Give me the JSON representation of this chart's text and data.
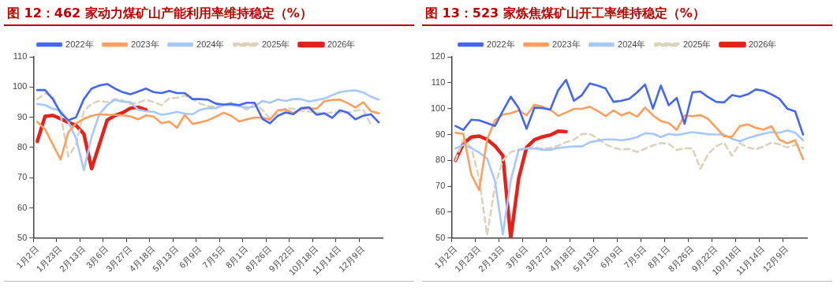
{
  "chart_data": [
    {
      "type": "line",
      "title": "图 12：462 家动力煤矿山产能利用率维持稳定（%）",
      "categories": [
        "1月2日",
        null,
        null,
        "1月23日",
        null,
        null,
        "2月13日",
        null,
        null,
        "3月6日",
        null,
        null,
        "3月27日",
        null,
        null,
        "4月18日",
        null,
        null,
        "5月13日",
        null,
        null,
        "6月9日",
        null,
        null,
        "7月5日",
        null,
        null,
        "8月1日",
        null,
        null,
        "8月26日",
        null,
        null,
        "9月22日",
        null,
        null,
        "10月18日",
        null,
        null,
        "11月14日",
        null,
        null,
        "12月9日",
        null,
        null
      ],
      "series": [
        {
          "name": "2022年",
          "color": "#4466f0",
          "values": [
            99,
            99,
            96,
            91.5,
            89,
            90,
            96,
            99.5,
            100.5,
            101,
            99.5,
            98.3,
            97.6,
            98.5,
            99.5,
            98.3,
            98,
            98.7,
            98,
            98,
            96,
            96,
            95.8,
            94.5,
            94.2,
            94.4,
            94,
            94.8,
            94.8,
            89.5,
            88,
            90.5,
            91.6,
            91,
            93,
            93.3,
            90.8,
            91.3,
            89.8,
            92.3,
            91.5,
            89.3,
            90.5,
            91,
            88.3
          ]
        },
        {
          "name": "2023年",
          "color": "#ff9e5e",
          "values": [
            88.5,
            86,
            81,
            76,
            85,
            88,
            89.5,
            90.5,
            91,
            90.8,
            90.8,
            90.6,
            90.3,
            89.3,
            90.6,
            90.2,
            88,
            88.6,
            86.5,
            90.8,
            87.8,
            88.3,
            89,
            90.2,
            91.5,
            90.5,
            88.6,
            89.3,
            89.9,
            89.9,
            89.2,
            92.3,
            92.5,
            91.3,
            92.8,
            93,
            92.8,
            95.3,
            95.7,
            95.8,
            94.7,
            93.2,
            95,
            92,
            91.3
          ]
        },
        {
          "name": "2024年",
          "color": "#a6c8ff",
          "values": [
            94.4,
            94,
            92.8,
            92.2,
            88.5,
            83,
            72.5,
            83.5,
            91,
            94,
            95.8,
            95.1,
            95,
            92.5,
            92,
            91.8,
            90.8,
            91.2,
            91.8,
            91.2,
            91,
            92.5,
            93,
            93,
            94,
            94,
            93.6,
            93.2,
            93.5,
            95.4,
            94.8,
            95.9,
            95.4,
            96,
            96,
            95.2,
            95.7,
            96.2,
            97.3,
            98.3,
            98.7,
            98.9,
            98.2,
            96.8,
            95.8
          ]
        },
        {
          "name": "2025年",
          "color": "#ddd3bd",
          "line_style": "dashed",
          "values": [
            96,
            97.8,
            97,
            91,
            77,
            81,
            92,
            94.5,
            95.4,
            95,
            96,
            95.6,
            94.4,
            94.8,
            95.8,
            95,
            94,
            96.3,
            96.4,
            97.2,
            96,
            94.5,
            93.7,
            93.5,
            94,
            94.9,
            93.7,
            92.5,
            94.4,
            92.5,
            89.5,
            91.6,
            93,
            92.8,
            92.1,
            91.9,
            91.6,
            91.1,
            91.6,
            91.6,
            91.4,
            92.2,
            92.5,
            87.5,
            null
          ]
        },
        {
          "name": "2026年",
          "color": "#e3221b",
          "values": [
            82,
            90.3,
            90.6,
            89.5,
            88.3,
            87.3,
            84.5,
            73,
            81,
            89,
            90.6,
            91.5,
            93,
            93.3,
            92.5,
            null,
            null,
            null,
            null,
            null,
            null,
            null,
            null,
            null,
            null,
            null,
            null,
            null,
            null,
            null,
            null,
            null,
            null,
            null,
            null,
            null,
            null,
            null,
            null,
            null,
            null,
            null,
            null,
            null,
            null
          ]
        }
      ],
      "ylim": [
        50,
        110
      ],
      "yticks": [
        50,
        60,
        70,
        80,
        90,
        100,
        110
      ],
      "grid": false,
      "legend": "top",
      "marker": "none"
    },
    {
      "type": "line",
      "title": "图 13：523 家炼焦煤矿山开工率维持稳定（%）",
      "categories": [
        "1月2日",
        null,
        null,
        "1月23日",
        null,
        null,
        "2月13日",
        null,
        null,
        "3月6日",
        null,
        null,
        "3月27日",
        null,
        null,
        "4月18日",
        null,
        null,
        "5月13日",
        null,
        null,
        "6月9日",
        null,
        null,
        "7月5日",
        null,
        null,
        "8月1日",
        null,
        null,
        "8月26日",
        null,
        null,
        "9月22日",
        null,
        null,
        "10月18日",
        null,
        null,
        "11月14日",
        null,
        null,
        "12月9日",
        null,
        null
      ],
      "series": [
        {
          "name": "2022年",
          "color": "#4466f0",
          "values": [
            93.3,
            91.8,
            95.7,
            95.5,
            94.4,
            93.3,
            99.1,
            104.6,
            100.2,
            92.2,
            100.4,
            100.2,
            99.6,
            107.1,
            111.1,
            103,
            105.2,
            109.7,
            108.9,
            107.8,
            102.6,
            103,
            103.8,
            106.3,
            109.3,
            100,
            108.9,
            101.3,
            104.1,
            94.1,
            106.3,
            106.6,
            104.4,
            102.6,
            102.4,
            105.2,
            104.6,
            105.5,
            107.4,
            106.9,
            105.5,
            103.8,
            100,
            98.9,
            90
          ]
        },
        {
          "name": "2023年",
          "color": "#ff9e5e",
          "values": [
            90.7,
            90.2,
            74.6,
            68.5,
            88,
            95.5,
            97.7,
            98.2,
            99.3,
            97.4,
            101.5,
            100.7,
            99.6,
            97.2,
            98.5,
            99.9,
            99.9,
            100.7,
            99.1,
            97.1,
            99.3,
            97.4,
            98.5,
            96.9,
            100.4,
            97.4,
            95.2,
            94.4,
            91.8,
            97.4,
            97.1,
            97.5,
            96,
            92.6,
            89.3,
            89.1,
            93.3,
            93.9,
            92.6,
            91.9,
            93.2,
            88,
            86.6,
            87.8,
            80.5
          ]
        },
        {
          "name": "2024年",
          "color": "#a6c8ff",
          "values": [
            84.6,
            86,
            84.8,
            83,
            80.8,
            72,
            51.4,
            72.4,
            84,
            84.6,
            84.6,
            84.1,
            84.1,
            84.8,
            85.1,
            85.4,
            85.4,
            87,
            87.6,
            88.1,
            88.1,
            87.8,
            88.2,
            89,
            90.5,
            90.3,
            89,
            90.2,
            89.8,
            90.4,
            90.9,
            90.5,
            90.1,
            90,
            90,
            88.3,
            87.4,
            88.6,
            89.5,
            90.3,
            90.9,
            90.7,
            91.6,
            90.7,
            87.8
          ]
        },
        {
          "name": "2025年",
          "color": "#ddd3bd",
          "line_style": "dashed",
          "values": [
            80,
            88,
            85,
            73,
            51.2,
            70,
            80,
            83.2,
            84.2,
            84.7,
            85,
            84.6,
            84.8,
            85.7,
            87,
            88,
            90.2,
            90.2,
            88.5,
            86.2,
            84.9,
            84.2,
            84.4,
            83.2,
            84.5,
            85.8,
            86.7,
            86.4,
            84,
            84.7,
            84.6,
            76.8,
            82.5,
            85.5,
            86.8,
            81.8,
            86.6,
            85,
            84.3,
            85.4,
            86.9,
            86.2,
            85,
            86,
            84.8
          ]
        },
        {
          "name": "2026年",
          "color": "#e3221b",
          "values": [
            80,
            86.5,
            89,
            89.4,
            88.1,
            85.6,
            81.8,
            50,
            73,
            85,
            88,
            89.1,
            89.8,
            91.3,
            91.1,
            null,
            null,
            null,
            null,
            null,
            null,
            null,
            null,
            null,
            null,
            null,
            null,
            null,
            null,
            null,
            null,
            null,
            null,
            null,
            null,
            null,
            null,
            null,
            null,
            null,
            null,
            null,
            null,
            null,
            null
          ]
        }
      ],
      "ylim": [
        50,
        120
      ],
      "yticks": [
        50,
        60,
        70,
        80,
        90,
        100,
        110,
        120
      ],
      "grid": false,
      "legend": "top",
      "marker": "none"
    }
  ]
}
